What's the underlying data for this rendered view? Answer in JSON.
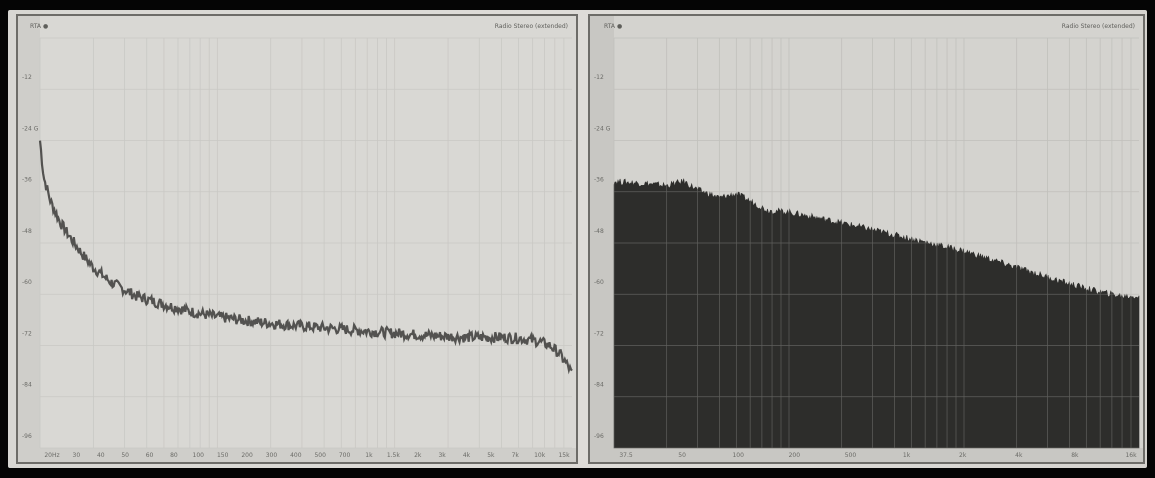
{
  "chart_data": [
    {
      "type": "line",
      "title": "RTA ●",
      "subtitle": "Radio Stereo (extended)",
      "xlabel": "",
      "ylabel": "",
      "x_scale": "log",
      "xlim": [
        20,
        20000
      ],
      "ylim": [
        -100,
        0
      ],
      "grid": true,
      "legend": "none",
      "y_ticks": [
        "-12",
        "-24 G",
        "-36",
        "-48",
        "-60",
        "-72",
        "-84",
        "-96"
      ],
      "x_ticks": [
        "20Hz",
        "30",
        "40",
        "50",
        "60",
        "80",
        "100",
        "150",
        "200",
        "300",
        "400",
        "500",
        "700",
        "1k",
        "1.5k",
        "2k",
        "3k",
        "4k",
        "5k",
        "7k",
        "10k",
        "15k"
      ],
      "series": [
        {
          "color": "#3b3b38",
          "points": [
            [
              20,
              -25
            ],
            [
              21,
              -34
            ],
            [
              23,
              -40
            ],
            [
              26,
              -45
            ],
            [
              30,
              -49
            ],
            [
              35,
              -53
            ],
            [
              40,
              -56
            ],
            [
              50,
              -59.5
            ],
            [
              70,
              -63
            ],
            [
              100,
              -65
            ],
            [
              150,
              -67
            ],
            [
              200,
              -68
            ],
            [
              300,
              -69
            ],
            [
              500,
              -70
            ],
            [
              700,
              -70.5
            ],
            [
              1000,
              -71
            ],
            [
              2000,
              -72
            ],
            [
              3000,
              -72.5
            ],
            [
              5000,
              -73
            ],
            [
              8000,
              -73
            ],
            [
              10000,
              -73.2
            ],
            [
              13000,
              -74
            ],
            [
              15000,
              -75
            ],
            [
              17000,
              -77
            ],
            [
              19000,
              -80
            ],
            [
              20000,
              -82
            ]
          ]
        }
      ]
    },
    {
      "type": "area",
      "title": "RTA ●",
      "subtitle": "Radio Stereo (extended)",
      "xlabel": "",
      "ylabel": "",
      "x_scale": "log",
      "xlim": [
        20,
        20000
      ],
      "ylim": [
        -100,
        0
      ],
      "grid": true,
      "legend": "none",
      "y_ticks": [
        "-12",
        "-24 G",
        "-36",
        "-48",
        "-60",
        "-72",
        "-84",
        "-96"
      ],
      "x_ticks": [
        "37.5",
        "50",
        "100",
        "200",
        "500",
        "1k",
        "2k",
        "4k",
        "8k",
        "16k"
      ],
      "series": [
        {
          "color": "#2d2d2b",
          "points": [
            [
              20,
              -35
            ],
            [
              30,
              -35.5
            ],
            [
              40,
              -36
            ],
            [
              50,
              -35
            ],
            [
              60,
              -37
            ],
            [
              80,
              -39
            ],
            [
              100,
              -38
            ],
            [
              150,
              -42
            ],
            [
              200,
              -42.5
            ],
            [
              300,
              -44
            ],
            [
              500,
              -46
            ],
            [
              1000,
              -49
            ],
            [
              2000,
              -52
            ],
            [
              4000,
              -56
            ],
            [
              8000,
              -60
            ],
            [
              12000,
              -62
            ],
            [
              16000,
              -63
            ],
            [
              20000,
              -63
            ]
          ]
        }
      ]
    }
  ]
}
